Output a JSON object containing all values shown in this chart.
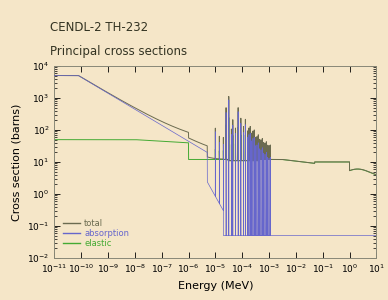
{
  "title_line1": "CENDL-2 TH-232",
  "title_line2": "Principal cross sections",
  "xlabel": "Energy (MeV)",
  "ylabel": "Cross section (barns)",
  "background_color": "#f5e6c8",
  "total_color": "#6b6b50",
  "absorption_color": "#6666cc",
  "elastic_color": "#44aa33",
  "legend_labels": [
    "total",
    "absorption",
    "elastic"
  ],
  "title_fontsize": 8.5,
  "axis_label_fontsize": 8,
  "tick_fontsize": 6.5
}
